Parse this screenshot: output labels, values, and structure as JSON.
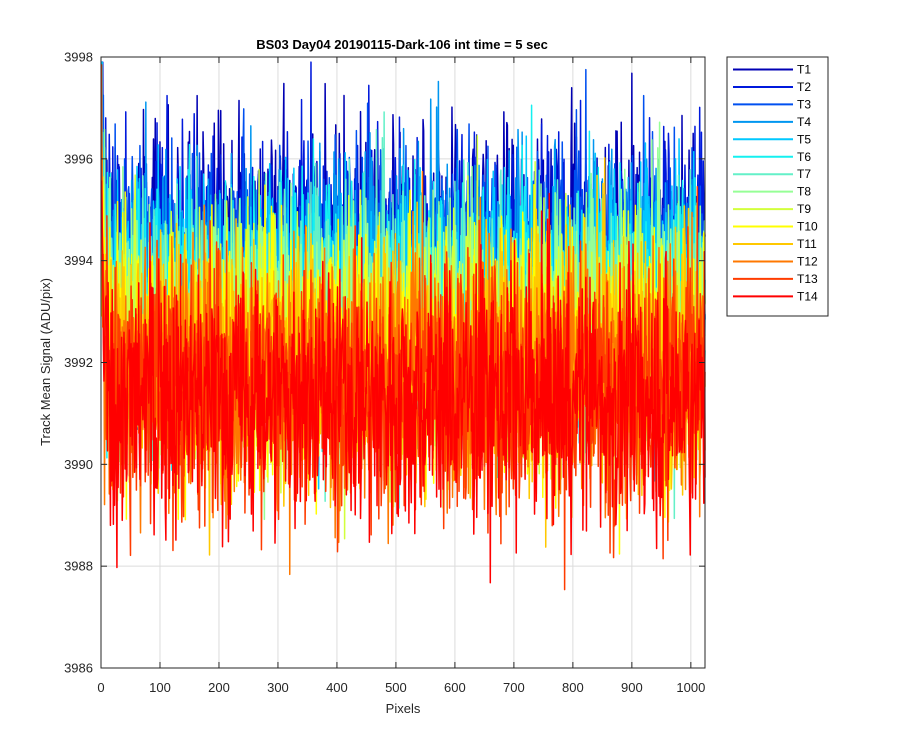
{
  "chart_data": {
    "type": "line",
    "title": "BS03 Day04 20190115-Dark-106 int time = 5 sec",
    "xlabel": "Pixels",
    "ylabel": "Track Mean Signal (ADU/pix)",
    "xlim": [
      0,
      1024
    ],
    "ylim": [
      3986,
      3998
    ],
    "xticks": [
      0,
      100,
      200,
      300,
      400,
      500,
      600,
      700,
      800,
      900,
      1000
    ],
    "yticks": [
      3986,
      3988,
      3990,
      3992,
      3994,
      3996,
      3998
    ],
    "grid": true,
    "legend_position": "outside-top-right",
    "noise_amplitude": 1.25,
    "series": [
      {
        "name": "T1",
        "color": "#0000B4",
        "mean": 3994.2,
        "peak": 3997.8
      },
      {
        "name": "T2",
        "color": "#0019DC",
        "mean": 3994.0,
        "peak": 3997.5
      },
      {
        "name": "T3",
        "color": "#0050F0",
        "mean": 3993.8,
        "peak": 3997.2
      },
      {
        "name": "T4",
        "color": "#0096F0",
        "mean": 3993.5,
        "peak": 3997.0
      },
      {
        "name": "T5",
        "color": "#00C8FF",
        "mean": 3993.3,
        "peak": 3996.8
      },
      {
        "name": "T6",
        "color": "#14F0F0",
        "mean": 3993.1,
        "peak": 3996.6
      },
      {
        "name": "T7",
        "color": "#64F0C8",
        "mean": 3992.9,
        "peak": 3996.4
      },
      {
        "name": "T8",
        "color": "#96FF96",
        "mean": 3992.7,
        "peak": 3996.2
      },
      {
        "name": "T9",
        "color": "#D2FF3C",
        "mean": 3992.5,
        "peak": 3996.0
      },
      {
        "name": "T10",
        "color": "#FFFF00",
        "mean": 3992.2,
        "peak": 3995.8
      },
      {
        "name": "T11",
        "color": "#FFC800",
        "mean": 3992.0,
        "peak": 3995.6
      },
      {
        "name": "T12",
        "color": "#FF7800",
        "mean": 3991.8,
        "peak": 3995.4
      },
      {
        "name": "T13",
        "color": "#FF3C00",
        "mean": 3991.5,
        "peak": 3995.2
      },
      {
        "name": "T14",
        "color": "#FF0000",
        "mean": 3991.3,
        "peak": 3995.0
      }
    ]
  }
}
